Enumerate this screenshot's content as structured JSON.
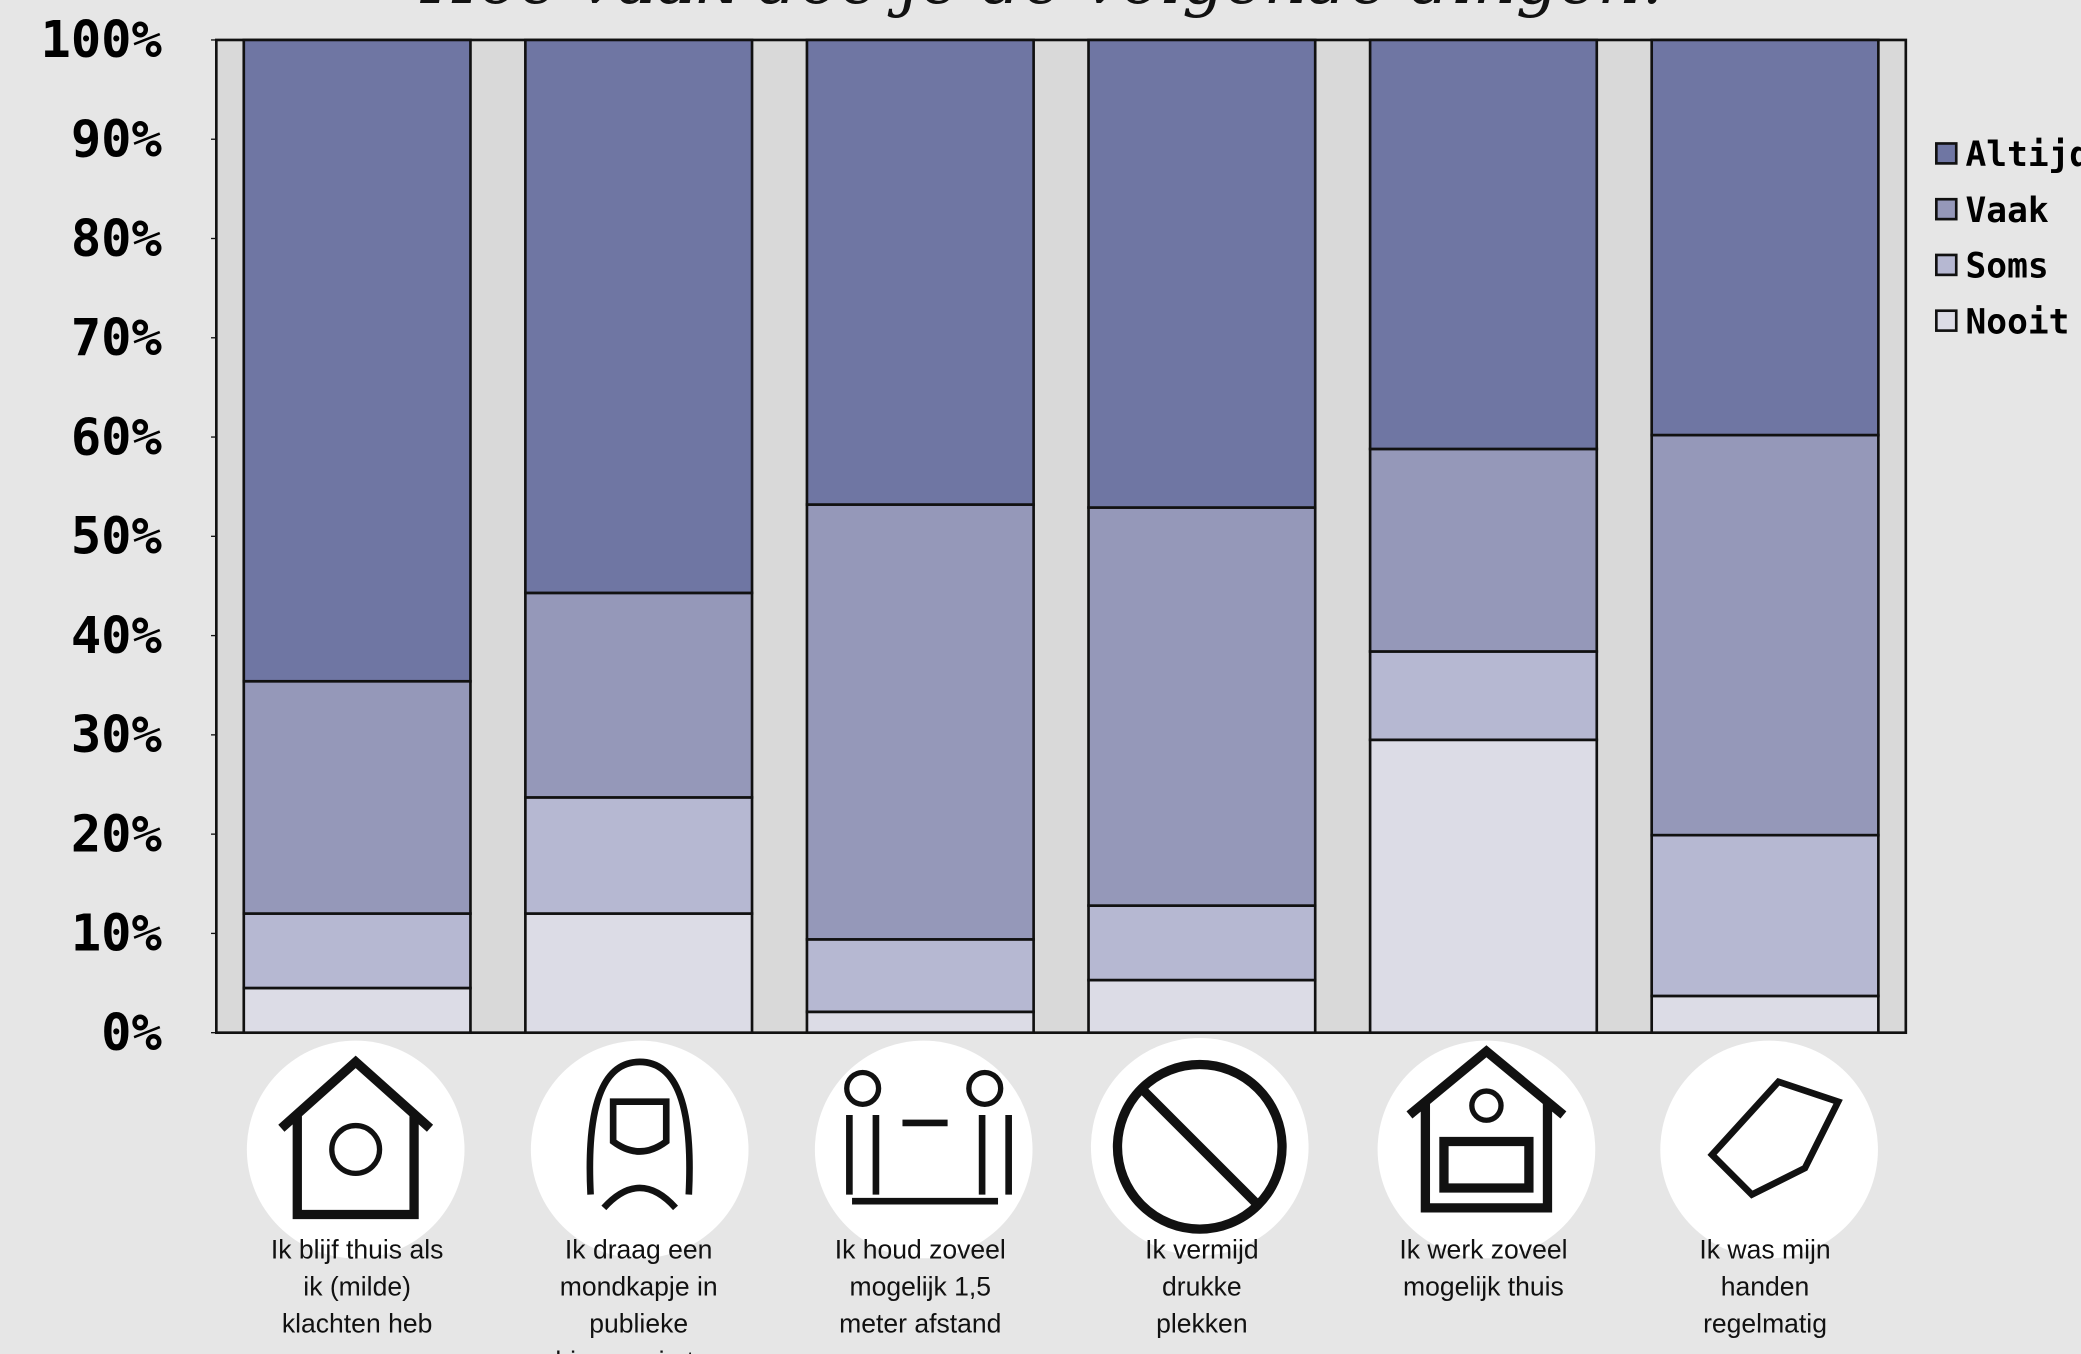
{
  "chart_data": {
    "type": "stacked_bar",
    "title": "Hoe vaak doe je de volgende dingen?",
    "categories": [
      "Ik blijf thuis als\nik (milde)\nklachten heb",
      "Ik draag een\nmondkapje in\npublieke\nbinnenruimtes",
      "Ik houd zoveel\nmogelijk 1,5\nmeter afstand",
      "Ik vermijd\ndrukke\nplekken",
      "Ik werk zoveel\nmogelijk thuis",
      "Ik was mijn\nhanden\nregelmatig"
    ],
    "series": [
      {
        "name": "Nooit",
        "color": "#dcdce6",
        "values": [
          4.5,
          12.0,
          2.1,
          5.3,
          29.5,
          3.7
        ]
      },
      {
        "name": "Soms",
        "color": "#b6b8d2",
        "values": [
          7.5,
          11.7,
          7.3,
          7.5,
          8.9,
          16.2
        ]
      },
      {
        "name": "Vaak",
        "color": "#9598b9",
        "values": [
          23.4,
          20.6,
          43.8,
          40.1,
          20.4,
          40.3
        ]
      },
      {
        "name": "Altijd",
        "color": "#6f76a3",
        "values": [
          64.6,
          55.7,
          46.8,
          47.1,
          41.2,
          39.8
        ]
      }
    ],
    "ylim": [
      0,
      100
    ],
    "yticks": [
      {
        "value": 0,
        "label": "0%"
      },
      {
        "value": 10,
        "label": "10%"
      },
      {
        "value": 20,
        "label": "20%"
      },
      {
        "value": 30,
        "label": "30%"
      },
      {
        "value": 40,
        "label": "40%"
      },
      {
        "value": 50,
        "label": "50%"
      },
      {
        "value": 60,
        "label": "60%"
      },
      {
        "value": 70,
        "label": "70%"
      },
      {
        "value": 80,
        "label": "80%"
      },
      {
        "value": 90,
        "label": "90%"
      },
      {
        "value": 100,
        "label": "100%"
      }
    ],
    "legend": "right"
  }
}
